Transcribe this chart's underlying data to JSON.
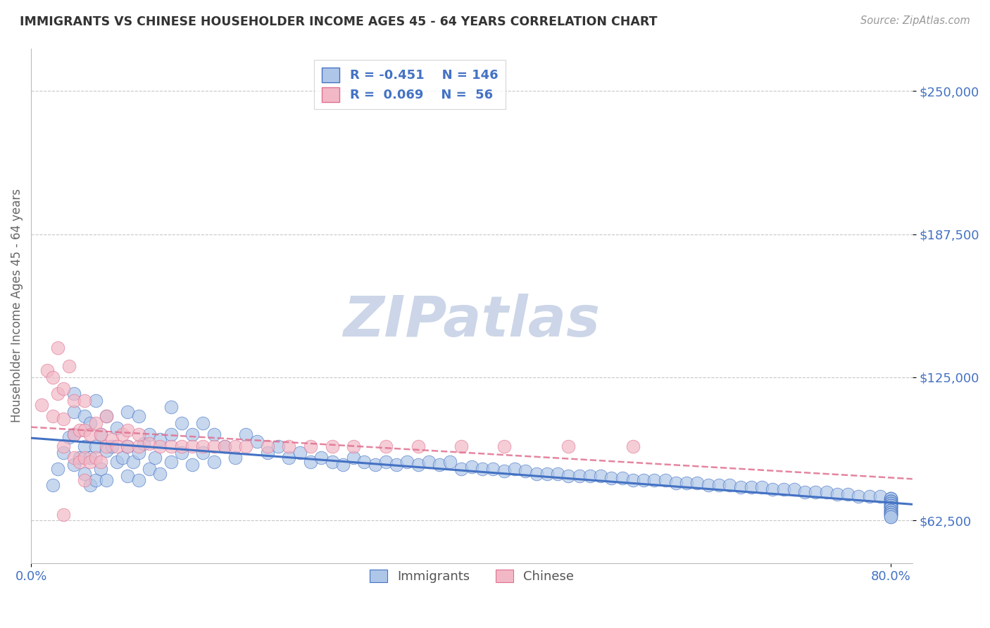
{
  "title": "IMMIGRANTS VS CHINESE HOUSEHOLDER INCOME AGES 45 - 64 YEARS CORRELATION CHART",
  "source": "Source: ZipAtlas.com",
  "ylabel": "Householder Income Ages 45 - 64 years",
  "xlim": [
    0.0,
    0.82
  ],
  "ylim": [
    43750,
    268750
  ],
  "yticks": [
    62500,
    125000,
    187500,
    250000
  ],
  "ytick_labels": [
    "$62,500",
    "$125,000",
    "$187,500",
    "$250,000"
  ],
  "xticks": [
    0.0,
    0.8
  ],
  "xtick_labels": [
    "0.0%",
    "80.0%"
  ],
  "legend_r1": "R = -0.451",
  "legend_n1": "N = 146",
  "legend_r2": "R =  0.069",
  "legend_n2": "N =  56",
  "color_immigrants": "#aec6e8",
  "color_chinese": "#f2b8c6",
  "trendline_color_immigrants": "#4472c4",
  "trendline_color_chinese": "#e07090",
  "watermark": "ZIPatlas",
  "background_color": "#ffffff",
  "grid_color": "#c8c8c8",
  "title_color": "#333333",
  "axis_label_color": "#666666",
  "tick_color": "#4472c4",
  "watermark_color": "#ccd6e8",
  "immigrants_x": [
    0.02,
    0.025,
    0.03,
    0.035,
    0.04,
    0.04,
    0.04,
    0.04,
    0.045,
    0.05,
    0.05,
    0.05,
    0.055,
    0.055,
    0.055,
    0.06,
    0.06,
    0.06,
    0.065,
    0.065,
    0.07,
    0.07,
    0.07,
    0.075,
    0.08,
    0.08,
    0.085,
    0.09,
    0.09,
    0.09,
    0.095,
    0.1,
    0.1,
    0.1,
    0.105,
    0.11,
    0.11,
    0.115,
    0.12,
    0.12,
    0.13,
    0.13,
    0.13,
    0.14,
    0.14,
    0.15,
    0.15,
    0.16,
    0.16,
    0.17,
    0.17,
    0.18,
    0.19,
    0.2,
    0.21,
    0.22,
    0.23,
    0.24,
    0.25,
    0.26,
    0.27,
    0.28,
    0.29,
    0.3,
    0.31,
    0.32,
    0.33,
    0.34,
    0.35,
    0.36,
    0.37,
    0.38,
    0.39,
    0.4,
    0.41,
    0.42,
    0.43,
    0.44,
    0.45,
    0.46,
    0.47,
    0.48,
    0.49,
    0.5,
    0.51,
    0.52,
    0.53,
    0.54,
    0.55,
    0.56,
    0.57,
    0.58,
    0.59,
    0.6,
    0.61,
    0.62,
    0.63,
    0.64,
    0.65,
    0.66,
    0.67,
    0.68,
    0.69,
    0.7,
    0.71,
    0.72,
    0.73,
    0.74,
    0.75,
    0.76,
    0.77,
    0.78,
    0.79,
    0.8,
    0.8,
    0.8,
    0.8,
    0.8,
    0.8,
    0.8,
    0.8,
    0.8,
    0.8,
    0.8,
    0.8,
    0.8,
    0.8,
    0.8,
    0.8,
    0.8,
    0.8,
    0.8,
    0.8,
    0.8,
    0.8,
    0.8,
    0.8,
    0.8,
    0.8,
    0.8,
    0.8,
    0.8,
    0.8,
    0.8,
    0.8,
    0.8
  ],
  "immigrants_y": [
    78000,
    85000,
    92000,
    99000,
    87000,
    100000,
    110000,
    118000,
    90000,
    83000,
    95000,
    108000,
    78000,
    90000,
    105000,
    80000,
    95000,
    115000,
    85000,
    100000,
    80000,
    93000,
    108000,
    95000,
    88000,
    103000,
    90000,
    82000,
    95000,
    110000,
    88000,
    80000,
    92000,
    108000,
    96000,
    85000,
    100000,
    90000,
    83000,
    98000,
    88000,
    100000,
    112000,
    92000,
    105000,
    87000,
    100000,
    92000,
    105000,
    88000,
    100000,
    95000,
    90000,
    100000,
    97000,
    92000,
    95000,
    90000,
    92000,
    88000,
    90000,
    88000,
    87000,
    90000,
    88000,
    87000,
    88000,
    87000,
    88000,
    87000,
    88000,
    87000,
    88000,
    85000,
    86000,
    85000,
    85000,
    84000,
    85000,
    84000,
    83000,
    83000,
    83000,
    82000,
    82000,
    82000,
    82000,
    81000,
    81000,
    80000,
    80000,
    80000,
    80000,
    79000,
    79000,
    79000,
    78000,
    78000,
    78000,
    77000,
    77000,
    77000,
    76000,
    76000,
    76000,
    75000,
    75000,
    75000,
    74000,
    74000,
    73000,
    73000,
    73000,
    72000,
    72000,
    72000,
    71000,
    71000,
    71000,
    71000,
    70000,
    70000,
    70000,
    70000,
    69000,
    69000,
    69000,
    69000,
    68000,
    68000,
    68000,
    68000,
    67000,
    67000,
    67000,
    67000,
    66000,
    66000,
    66000,
    66000,
    65000,
    65000,
    65000,
    65000,
    64000,
    64000
  ],
  "chinese_x": [
    0.01,
    0.015,
    0.02,
    0.02,
    0.025,
    0.025,
    0.03,
    0.03,
    0.03,
    0.035,
    0.04,
    0.04,
    0.04,
    0.045,
    0.045,
    0.05,
    0.05,
    0.05,
    0.055,
    0.055,
    0.06,
    0.06,
    0.065,
    0.065,
    0.07,
    0.07,
    0.075,
    0.08,
    0.085,
    0.09,
    0.09,
    0.1,
    0.1,
    0.11,
    0.12,
    0.13,
    0.14,
    0.15,
    0.16,
    0.17,
    0.18,
    0.19,
    0.2,
    0.22,
    0.24,
    0.26,
    0.28,
    0.3,
    0.33,
    0.36,
    0.4,
    0.44,
    0.5,
    0.56,
    0.05,
    0.03
  ],
  "chinese_y": [
    113000,
    128000,
    108000,
    125000,
    118000,
    138000,
    95000,
    107000,
    120000,
    130000,
    90000,
    100000,
    115000,
    88000,
    102000,
    90000,
    102000,
    115000,
    88000,
    100000,
    90000,
    105000,
    88000,
    100000,
    95000,
    108000,
    98000,
    95000,
    100000,
    95000,
    102000,
    95000,
    100000,
    96000,
    95000,
    95000,
    95000,
    95000,
    95000,
    95000,
    95000,
    95000,
    95000,
    95000,
    95000,
    95000,
    95000,
    95000,
    95000,
    95000,
    95000,
    95000,
    95000,
    95000,
    80000,
    65000
  ]
}
